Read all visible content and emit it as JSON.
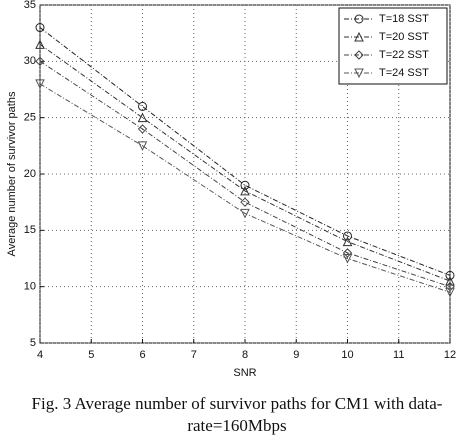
{
  "chart_data": {
    "type": "line",
    "x_label": "SNR",
    "y_label": "Average number of survivor paths",
    "x": [
      4,
      6,
      8,
      10,
      12
    ],
    "series": [
      {
        "name": "T=18 SST",
        "color": "#222222",
        "marker": "circle",
        "values": [
          33,
          26,
          19,
          14.5,
          11
        ]
      },
      {
        "name": "T=20 SST",
        "color": "#333333",
        "marker": "triangle-up",
        "values": [
          31.5,
          25,
          18.5,
          14,
          10.5
        ]
      },
      {
        "name": "T=22 SST",
        "color": "#444444",
        "marker": "diamond",
        "values": [
          30,
          24,
          17.5,
          13,
          10
        ]
      },
      {
        "name": "T=24 SST",
        "color": "#555555",
        "marker": "triangle-down",
        "values": [
          28,
          22.5,
          16.5,
          12.5,
          9.5
        ]
      }
    ],
    "xlim": [
      4,
      12
    ],
    "xticks": [
      4,
      5,
      6,
      7,
      8,
      9,
      10,
      11,
      12
    ],
    "ylim": [
      5,
      35
    ],
    "yticks": [
      5,
      10,
      15,
      20,
      25,
      30,
      35
    ],
    "grid": true,
    "legend": "upper right",
    "caption": [
      "Fig. 3 Average number of survivor paths for CM1 with data-",
      "rate=160Mbps"
    ]
  }
}
